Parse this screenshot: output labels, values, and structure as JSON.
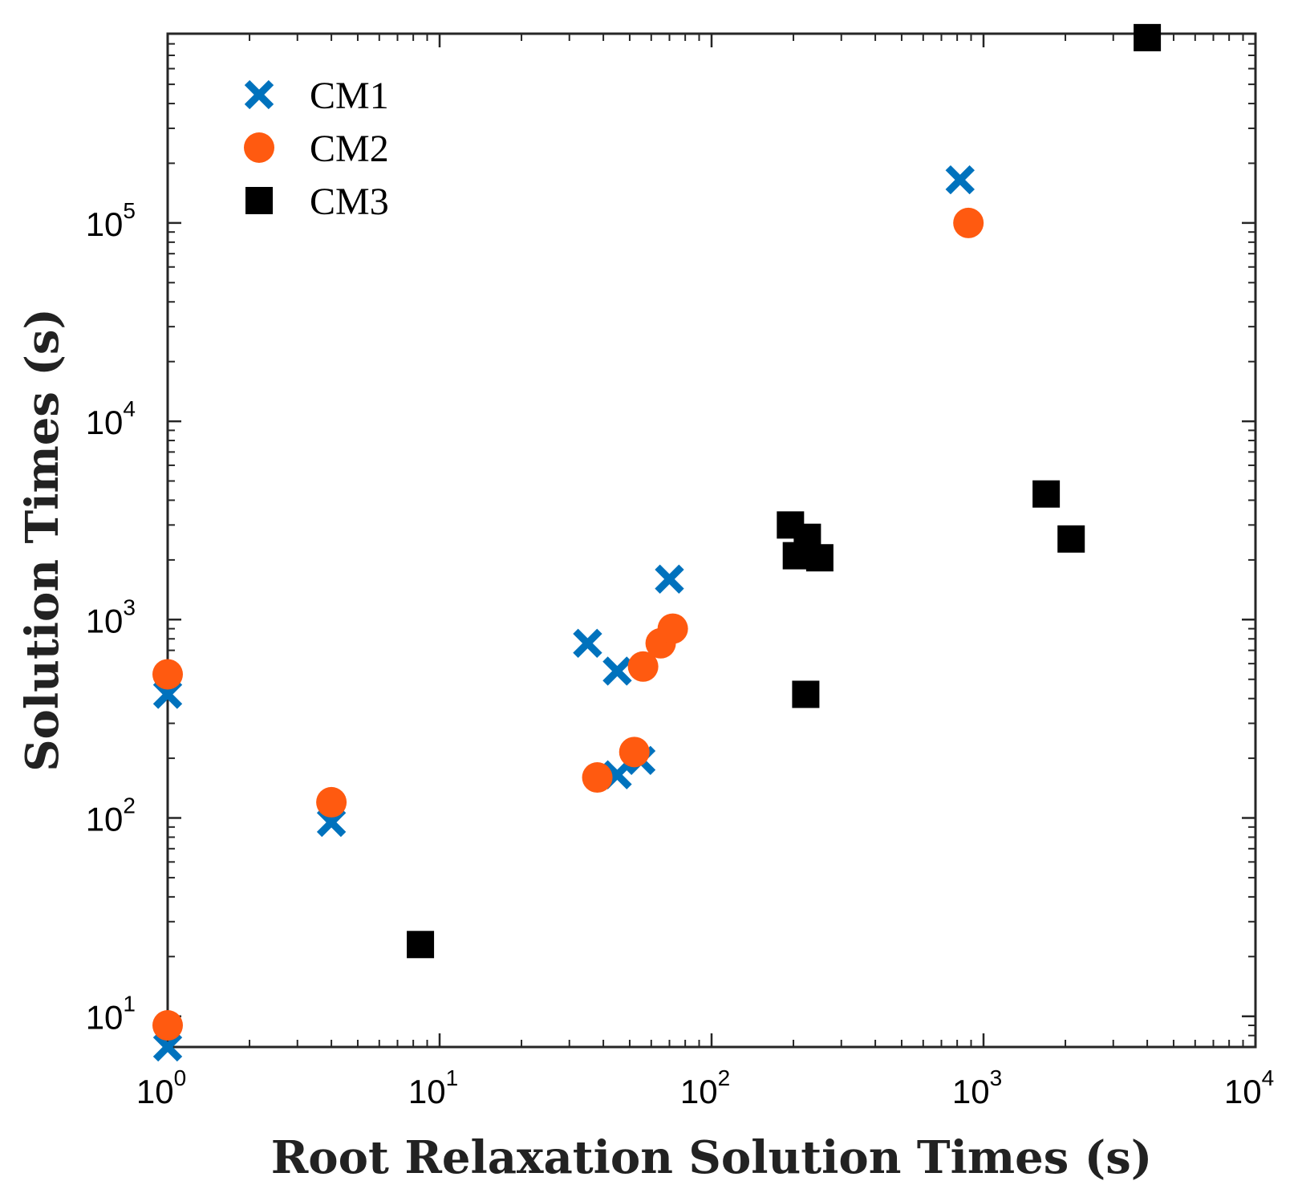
{
  "chart_data": {
    "type": "scatter",
    "title": "",
    "xlabel": "Root Relaxation Solution Times (s)",
    "ylabel": "Solution Times (s)",
    "xscale": "log",
    "yscale": "log",
    "xlim": [
      1,
      10000
    ],
    "ylim": [
      7,
      900000
    ],
    "xticks": [
      {
        "base": "10",
        "exp": "0"
      },
      {
        "base": "10",
        "exp": "1"
      },
      {
        "base": "10",
        "exp": "2"
      },
      {
        "base": "10",
        "exp": "3"
      },
      {
        "base": "10",
        "exp": "4"
      }
    ],
    "yticks": [
      {
        "base": "10",
        "exp": "1"
      },
      {
        "base": "10",
        "exp": "2"
      },
      {
        "base": "10",
        "exp": "3"
      },
      {
        "base": "10",
        "exp": "4"
      },
      {
        "base": "10",
        "exp": "5"
      }
    ],
    "legend_position": "top-left",
    "series": [
      {
        "name": "CM1",
        "marker": "x",
        "color": "#0072BD",
        "points": [
          {
            "x": 1,
            "y": 7
          },
          {
            "x": 1,
            "y": 420
          },
          {
            "x": 4,
            "y": 95
          },
          {
            "x": 35,
            "y": 760
          },
          {
            "x": 45,
            "y": 550
          },
          {
            "x": 45,
            "y": 165
          },
          {
            "x": 55,
            "y": 195
          },
          {
            "x": 70,
            "y": 1600
          },
          {
            "x": 820,
            "y": 165000
          }
        ]
      },
      {
        "name": "CM2",
        "marker": "circle",
        "color": "#FF5A10",
        "points": [
          {
            "x": 1,
            "y": 9
          },
          {
            "x": 1,
            "y": 530
          },
          {
            "x": 4,
            "y": 120
          },
          {
            "x": 38,
            "y": 160
          },
          {
            "x": 52,
            "y": 215
          },
          {
            "x": 56,
            "y": 580
          },
          {
            "x": 65,
            "y": 760
          },
          {
            "x": 72,
            "y": 900
          },
          {
            "x": 880,
            "y": 100000
          }
        ]
      },
      {
        "name": "CM3",
        "marker": "square",
        "color": "#000000",
        "points": [
          {
            "x": 8.5,
            "y": 23
          },
          {
            "x": 195,
            "y": 3000
          },
          {
            "x": 225,
            "y": 2600
          },
          {
            "x": 205,
            "y": 2100
          },
          {
            "x": 250,
            "y": 2050
          },
          {
            "x": 222,
            "y": 420
          },
          {
            "x": 1700,
            "y": 4300
          },
          {
            "x": 2100,
            "y": 2550
          },
          {
            "x": 4000,
            "y": 860000
          }
        ]
      }
    ]
  }
}
